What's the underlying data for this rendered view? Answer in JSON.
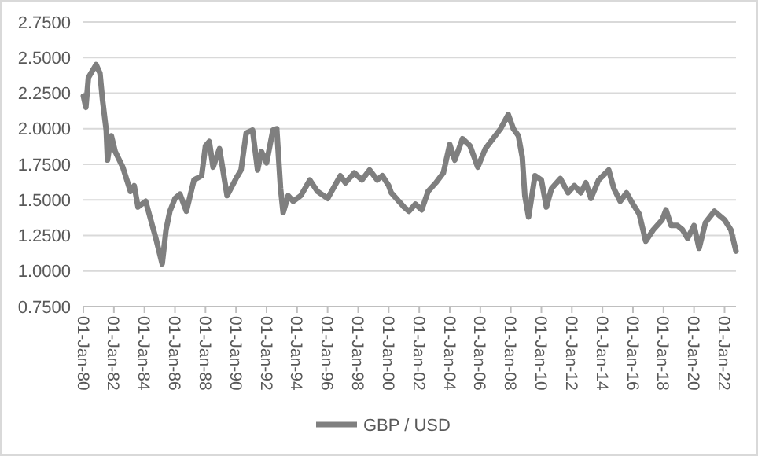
{
  "chart_data": {
    "type": "line",
    "x": [
      "1980-01",
      "1980-03",
      "1980-05",
      "1980-11",
      "1981-02",
      "1981-04",
      "1981-07",
      "1981-08",
      "1981-11",
      "1982-02",
      "1982-08",
      "1983-02",
      "1983-05",
      "1983-08",
      "1984-02",
      "1984-06",
      "1984-10",
      "1985-03",
      "1985-06",
      "1985-09",
      "1986-01",
      "1986-05",
      "1986-10",
      "1987-04",
      "1987-10",
      "1988-01",
      "1988-04",
      "1988-07",
      "1988-12",
      "1989-06",
      "1990-01",
      "1990-05",
      "1990-09",
      "1991-02",
      "1991-06",
      "1991-09",
      "1992-01",
      "1992-06",
      "1992-09",
      "1992-12",
      "1993-02",
      "1993-06",
      "1993-10",
      "1994-04",
      "1994-11",
      "1995-05",
      "1996-01",
      "1996-11",
      "1997-03",
      "1997-10",
      "1998-04",
      "1998-10",
      "1999-04",
      "1999-08",
      "2000-01",
      "2000-03",
      "2000-09",
      "2001-01",
      "2001-05",
      "2001-10",
      "2002-03",
      "2002-08",
      "2003-02",
      "2003-08",
      "2004-01",
      "2004-05",
      "2004-11",
      "2005-05",
      "2005-11",
      "2006-05",
      "2006-11",
      "2007-05",
      "2007-11",
      "2008-03",
      "2008-07",
      "2008-10",
      "2008-12",
      "2009-03",
      "2009-08",
      "2010-01",
      "2010-05",
      "2010-09",
      "2011-04",
      "2011-10",
      "2012-03",
      "2012-08",
      "2012-12",
      "2013-04",
      "2013-10",
      "2014-06",
      "2014-10",
      "2015-03",
      "2015-08",
      "2016-01",
      "2016-06",
      "2016-11",
      "2017-05",
      "2017-12",
      "2018-03",
      "2018-07",
      "2018-12",
      "2019-04",
      "2019-08",
      "2020-01",
      "2020-05",
      "2020-10",
      "2021-05",
      "2022-01",
      "2022-06",
      "2022-10"
    ],
    "series": [
      {
        "name": "GBP / USD",
        "color": "#7f7f7f",
        "values": [
          2.23,
          2.15,
          2.36,
          2.45,
          2.39,
          2.21,
          1.99,
          1.78,
          1.95,
          1.84,
          1.73,
          1.56,
          1.6,
          1.45,
          1.49,
          1.36,
          1.23,
          1.05,
          1.29,
          1.42,
          1.51,
          1.54,
          1.42,
          1.64,
          1.67,
          1.88,
          1.91,
          1.73,
          1.86,
          1.53,
          1.65,
          1.71,
          1.97,
          1.99,
          1.71,
          1.84,
          1.76,
          1.99,
          2.0,
          1.58,
          1.41,
          1.53,
          1.49,
          1.53,
          1.64,
          1.56,
          1.51,
          1.67,
          1.62,
          1.69,
          1.64,
          1.71,
          1.64,
          1.67,
          1.6,
          1.55,
          1.49,
          1.45,
          1.42,
          1.47,
          1.43,
          1.56,
          1.62,
          1.69,
          1.89,
          1.78,
          1.93,
          1.88,
          1.73,
          1.86,
          1.93,
          2.0,
          2.1,
          2.0,
          1.95,
          1.8,
          1.53,
          1.38,
          1.67,
          1.64,
          1.45,
          1.58,
          1.65,
          1.55,
          1.6,
          1.55,
          1.62,
          1.51,
          1.64,
          1.71,
          1.58,
          1.49,
          1.55,
          1.47,
          1.4,
          1.21,
          1.29,
          1.36,
          1.43,
          1.32,
          1.32,
          1.29,
          1.23,
          1.32,
          1.16,
          1.34,
          1.42,
          1.36,
          1.29,
          1.14
        ]
      }
    ],
    "xlim": [
      "1980-01-01",
      "2022-10-01"
    ],
    "xticks": [
      {
        "value": "1980-01-01",
        "label": "01-Jan-80"
      },
      {
        "value": "1982-01-01",
        "label": "01-Jan-82"
      },
      {
        "value": "1984-01-01",
        "label": "01-Jan-84"
      },
      {
        "value": "1986-01-01",
        "label": "01-Jan-86"
      },
      {
        "value": "1988-01-01",
        "label": "01-Jan-88"
      },
      {
        "value": "1990-01-01",
        "label": "01-Jan-90"
      },
      {
        "value": "1992-01-01",
        "label": "01-Jan-92"
      },
      {
        "value": "1994-01-01",
        "label": "01-Jan-94"
      },
      {
        "value": "1996-01-01",
        "label": "01-Jan-96"
      },
      {
        "value": "1998-01-01",
        "label": "01-Jan-98"
      },
      {
        "value": "2000-01-01",
        "label": "01-Jan-00"
      },
      {
        "value": "2002-01-01",
        "label": "01-Jan-02"
      },
      {
        "value": "2004-01-01",
        "label": "01-Jan-04"
      },
      {
        "value": "2006-01-01",
        "label": "01-Jan-06"
      },
      {
        "value": "2008-01-01",
        "label": "01-Jan-08"
      },
      {
        "value": "2010-01-01",
        "label": "01-Jan-10"
      },
      {
        "value": "2012-01-01",
        "label": "01-Jan-12"
      },
      {
        "value": "2014-01-01",
        "label": "01-Jan-14"
      },
      {
        "value": "2016-01-01",
        "label": "01-Jan-16"
      },
      {
        "value": "2018-01-01",
        "label": "01-Jan-18"
      },
      {
        "value": "2020-01-01",
        "label": "01-Jan-20"
      },
      {
        "value": "2022-01-01",
        "label": "01-Jan-22"
      }
    ],
    "ylim": [
      0.75,
      2.75
    ],
    "yticks": [
      {
        "value": 0.75,
        "label": "0.7500"
      },
      {
        "value": 1,
        "label": "1.0000"
      },
      {
        "value": 1.25,
        "label": "1.2500"
      },
      {
        "value": 1.5,
        "label": "1.5000"
      },
      {
        "value": 1.75,
        "label": "1.7500"
      },
      {
        "value": 2,
        "label": "2.0000"
      },
      {
        "value": 2.25,
        "label": "2.2500"
      },
      {
        "value": 2.5,
        "label": "2.5000"
      },
      {
        "value": 2.75,
        "label": "2.7500"
      }
    ],
    "grid": "y",
    "legend": "bottom",
    "marker": "none",
    "line_style": "solid"
  }
}
